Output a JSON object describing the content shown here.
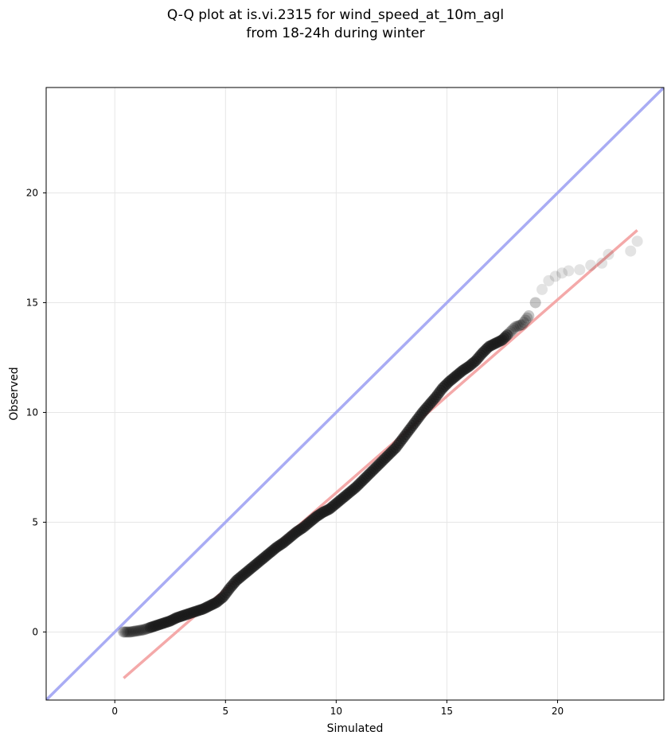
{
  "chart_data": {
    "type": "scatter",
    "title": [
      "Q-Q plot at is.vi.2315 for wind_speed_at_10m_agl",
      "from 18-24h during winter"
    ],
    "xlabel": "Simulated",
    "ylabel": "Observed",
    "xlim": [
      -3.1,
      24.8
    ],
    "ylim": [
      -3.1,
      24.8
    ],
    "xticks": [
      0,
      5,
      10,
      15,
      20
    ],
    "yticks": [
      0,
      5,
      10,
      15,
      20
    ],
    "grid": true,
    "reference_line": {
      "from": [
        -3.1,
        -3.1
      ],
      "to": [
        24.8,
        24.8
      ],
      "color": "#a9acf4"
    },
    "fit_line": {
      "from": [
        0.4,
        -2.1
      ],
      "to": [
        23.6,
        18.3
      ],
      "color": "#f4a9a9"
    },
    "points_color": "#1a1a1a",
    "quantiles": [
      [
        0.4,
        0.0
      ],
      [
        0.7,
        0.0
      ],
      [
        1.0,
        0.05
      ],
      [
        1.3,
        0.1
      ],
      [
        1.6,
        0.2
      ],
      [
        1.9,
        0.3
      ],
      [
        2.2,
        0.4
      ],
      [
        2.5,
        0.5
      ],
      [
        2.8,
        0.65
      ],
      [
        3.1,
        0.75
      ],
      [
        3.4,
        0.85
      ],
      [
        3.7,
        0.95
      ],
      [
        4.0,
        1.05
      ],
      [
        4.3,
        1.2
      ],
      [
        4.6,
        1.35
      ],
      [
        4.9,
        1.6
      ],
      [
        5.2,
        2.0
      ],
      [
        5.5,
        2.35
      ],
      [
        5.8,
        2.6
      ],
      [
        6.1,
        2.85
      ],
      [
        6.4,
        3.1
      ],
      [
        6.7,
        3.35
      ],
      [
        7.0,
        3.6
      ],
      [
        7.3,
        3.85
      ],
      [
        7.6,
        4.05
      ],
      [
        7.9,
        4.3
      ],
      [
        8.2,
        4.55
      ],
      [
        8.5,
        4.75
      ],
      [
        8.8,
        5.0
      ],
      [
        9.1,
        5.25
      ],
      [
        9.4,
        5.45
      ],
      [
        9.7,
        5.6
      ],
      [
        10.0,
        5.85
      ],
      [
        10.3,
        6.1
      ],
      [
        10.6,
        6.35
      ],
      [
        10.9,
        6.6
      ],
      [
        11.2,
        6.9
      ],
      [
        11.5,
        7.2
      ],
      [
        11.8,
        7.5
      ],
      [
        12.1,
        7.8
      ],
      [
        12.4,
        8.1
      ],
      [
        12.7,
        8.4
      ],
      [
        13.0,
        8.8
      ],
      [
        13.3,
        9.2
      ],
      [
        13.6,
        9.6
      ],
      [
        13.9,
        10.0
      ],
      [
        14.2,
        10.35
      ],
      [
        14.5,
        10.7
      ],
      [
        14.8,
        11.1
      ],
      [
        15.1,
        11.4
      ],
      [
        15.4,
        11.65
      ],
      [
        15.7,
        11.9
      ],
      [
        16.0,
        12.1
      ],
      [
        16.3,
        12.35
      ],
      [
        16.6,
        12.7
      ],
      [
        16.9,
        13.0
      ],
      [
        17.2,
        13.15
      ],
      [
        17.5,
        13.3
      ],
      [
        17.8,
        13.6
      ],
      [
        18.1,
        13.9
      ],
      [
        18.4,
        14.0
      ],
      [
        18.7,
        14.4
      ],
      [
        19.0,
        15.0
      ],
      [
        19.3,
        15.6
      ],
      [
        19.6,
        16.0
      ],
      [
        19.9,
        16.2
      ],
      [
        20.2,
        16.35
      ],
      [
        20.5,
        16.45
      ],
      [
        21.0,
        16.5
      ],
      [
        21.5,
        16.7
      ],
      [
        22.0,
        16.8
      ],
      [
        22.3,
        17.2
      ],
      [
        23.3,
        17.35
      ],
      [
        23.6,
        17.8
      ]
    ]
  }
}
